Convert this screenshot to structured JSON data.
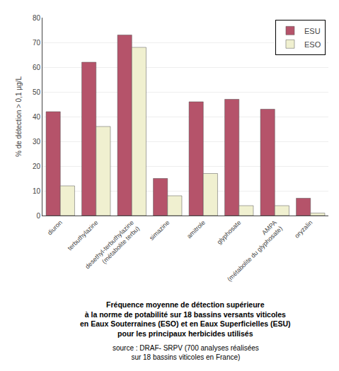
{
  "chart_data": {
    "type": "bar",
    "title": "Fréquence moyenne de détection supérieure\nà la norme de potabilité sur 18 bassins versants viticoles\nen Eaux Souterraines (ESO) et en Eaux Superficielles (ESU)\npour les principaux herbicides utilisés",
    "annotations": [
      "source : DRAF- SRPV (700 analyses réalisées\nsur 18 bassins viticoles en France)"
    ],
    "categories": [
      "diuron",
      "terbuthylazine",
      "desethyl-terbuthylazine\n(métabolite terbu)",
      "simazine",
      "amitrole",
      "glyphosate",
      "AMPA\n(métabolite du glyphosate)",
      "oryzalin"
    ],
    "series": [
      {
        "name": "ESU",
        "color": "#b5536a",
        "values": [
          42,
          62,
          73,
          15,
          46,
          47,
          43,
          7
        ]
      },
      {
        "name": "ESO",
        "color": "#f0f0d0",
        "values": [
          12,
          36,
          68,
          8,
          17,
          4,
          4,
          1
        ]
      }
    ],
    "ylabel": "% de détection > 0,1 µg/L",
    "ylim": [
      0,
      80
    ],
    "yticks": [
      0,
      10,
      20,
      30,
      40,
      50,
      60,
      70,
      80
    ],
    "grid": true,
    "legend": "upper right"
  }
}
